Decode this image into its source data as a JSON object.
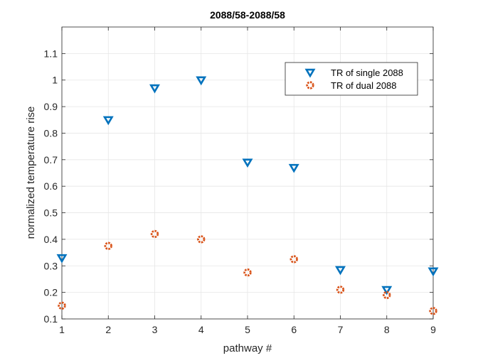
{
  "chart_data": {
    "type": "scatter",
    "title": "2088/58-2088/58",
    "xlabel": "pathway #",
    "ylabel": "normalized temperature rise",
    "xlim": [
      1,
      9
    ],
    "ylim": [
      0.1,
      1.2
    ],
    "xticks": [
      1,
      2,
      3,
      4,
      5,
      6,
      7,
      8,
      9
    ],
    "yticks": [
      0.1,
      0.2,
      0.3,
      0.4,
      0.5,
      0.6,
      0.7,
      0.8,
      0.9,
      1,
      1.1
    ],
    "grid": true,
    "legend_position": "top-right",
    "series": [
      {
        "name": "TR of single 2088",
        "marker": "triangle-down",
        "color": "#0072BD",
        "x": [
          1,
          2,
          3,
          4,
          5,
          6,
          7,
          8,
          9
        ],
        "y": [
          0.33,
          0.85,
          0.97,
          1.0,
          0.69,
          0.67,
          0.285,
          0.21,
          0.28
        ]
      },
      {
        "name": "TR of dual 2088",
        "marker": "circle",
        "color": "#D95319",
        "x": [
          1,
          2,
          3,
          4,
          5,
          6,
          7,
          8,
          9
        ],
        "y": [
          0.15,
          0.375,
          0.42,
          0.4,
          0.275,
          0.325,
          0.21,
          0.19,
          0.13
        ]
      }
    ]
  }
}
